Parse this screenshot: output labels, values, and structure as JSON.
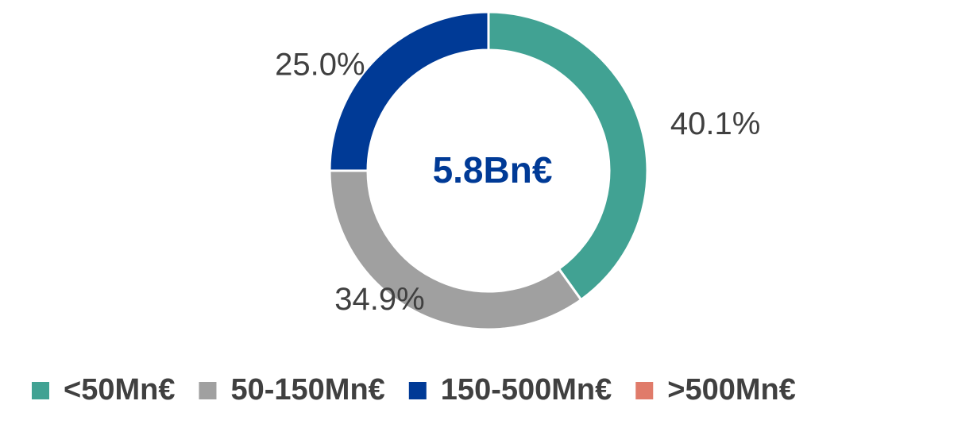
{
  "chart_data": {
    "type": "donut",
    "center_label": "5.8Bn€",
    "categories": [
      "<50Mn€",
      "50-150Mn€",
      "150-500Mn€",
      ">500Mn€"
    ],
    "values": [
      40.1,
      34.9,
      25.0,
      0
    ],
    "value_labels": [
      "40.1%",
      "34.9%",
      "25.0%",
      null
    ],
    "colors": [
      "#41a293",
      "#a0a0a0",
      "#003a96",
      "#e07b6a"
    ],
    "legend": "bottom"
  }
}
